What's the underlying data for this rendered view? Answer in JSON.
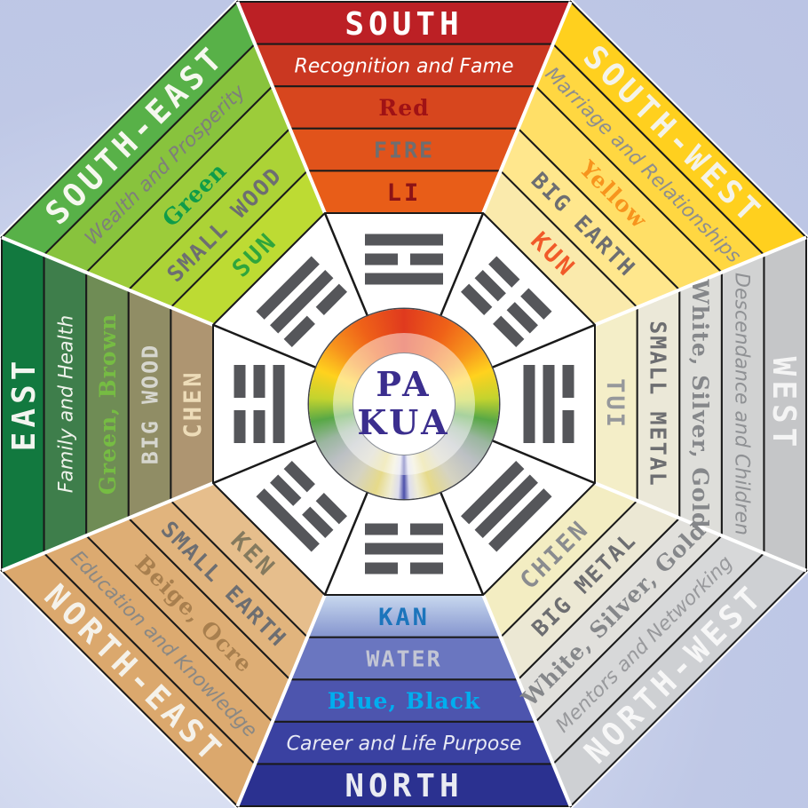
{
  "center": {
    "line1": "PA",
    "line2": "KUA",
    "text_color": "#3B2E8E"
  },
  "palette": {
    "band_stroke": "#1A1A1A",
    "separator": "#FFFFFF",
    "trigram_bar": "#55565A",
    "inner_octagon_fill": "#FFFFFF",
    "background_base": "#BFC8E6",
    "background_highlight": "#EDF0FA"
  },
  "ring": {
    "stops": [
      "#E03A1E 0%",
      "#EF6218 8%",
      "#F7941D 14%",
      "#FFD21E 19%",
      "#C3D32E 24%",
      "#58A846 28%",
      "#9BB6A0 32%",
      "#BCC0C4 36%",
      "#D5D3C2 41%",
      "#E6DA8A 45%",
      "#EFECD4 47.5%",
      "#DDDDEE 49%",
      "#4B4FA9 50%",
      "#DDDDEE 51%",
      "#EFECD4 52.5%",
      "#E6DA8A 55%",
      "#D5D3C2 59%",
      "#BCC0C4 64%",
      "#9BB6A0 68%",
      "#58A846 72%",
      "#C3D32E 76%",
      "#FFD21E 81%",
      "#F7941D 86%",
      "#EF6218 92%",
      "#E03A1E 100%"
    ]
  },
  "sectors": [
    {
      "id": "south",
      "angle_deg": 0,
      "text_rotation_deg": 0,
      "trigram_name": "li",
      "trigram_lines": [
        "solid",
        "broken",
        "solid"
      ],
      "bands": [
        {
          "text": "SOUTH",
          "color": "#FFFFFF",
          "fill": "#BC2025"
        },
        {
          "text": "Recognition and Fame",
          "color": "#FFFFFF",
          "fill": "#CA3721"
        },
        {
          "text": "Red",
          "color": "#A01215",
          "fill": "#D7461E"
        },
        {
          "text": "FIRE",
          "color": "#6D6E71",
          "fill": "#E1531B"
        },
        {
          "text": "LI",
          "color": "#8C1316",
          "fill": "#E85D18"
        }
      ]
    },
    {
      "id": "south-west",
      "angle_deg": 45,
      "text_rotation_deg": 45,
      "trigram_name": "kun",
      "trigram_lines": [
        "broken",
        "broken",
        "broken"
      ],
      "bands": [
        {
          "text": "SOUTH-WEST",
          "color": "#F4F3E9",
          "fill": "#FFD01E"
        },
        {
          "text": "Marriage and Relationships",
          "color": "#8E8E8E",
          "fill": "#FFD741"
        },
        {
          "text": "Yellow",
          "color": "#F7941D",
          "fill": "#FFDF67"
        },
        {
          "text": "BIG EARTH",
          "color": "#6D6E71",
          "fill": "#FFE78D"
        },
        {
          "text": "KUN",
          "color": "#F15A29",
          "fill": "#FAEAAC"
        }
      ]
    },
    {
      "id": "west",
      "angle_deg": 90,
      "text_rotation_deg": 90,
      "trigram_name": "tui",
      "trigram_lines": [
        "solid",
        "solid",
        "broken"
      ],
      "bands": [
        {
          "text": "WEST",
          "color": "#F4F4F4",
          "fill": "#C5C6C8"
        },
        {
          "text": "Descendance and Children",
          "color": "#8F9194",
          "fill": "#D1D2D2"
        },
        {
          "text": "White, Silver, Gold",
          "color": "#85878A",
          "fill": "#DEDEDA"
        },
        {
          "text": "SMALL METAL",
          "color": "#6D6E71",
          "fill": "#EBE8D8"
        },
        {
          "text": "TUI",
          "color": "#96989B",
          "fill": "#F4EEC8"
        }
      ]
    },
    {
      "id": "north-west",
      "angle_deg": 135,
      "text_rotation_deg": -45,
      "trigram_name": "chien",
      "trigram_lines": [
        "solid",
        "solid",
        "solid"
      ],
      "bands": [
        {
          "text": "NORTH-WEST",
          "color": "#F7F7F7",
          "fill": "#CED0D3"
        },
        {
          "text": "Mentors and Networking",
          "color": "#98999C",
          "fill": "#D7D8D9"
        },
        {
          "text": "White, Silver, Gold",
          "color": "#85878A",
          "fill": "#E1E0DC"
        },
        {
          "text": "BIG METAL",
          "color": "#6D6E71",
          "fill": "#ECE8D4"
        },
        {
          "text": "CHIEN",
          "color": "#8A8C8F",
          "fill": "#F3EDC2"
        }
      ]
    },
    {
      "id": "north",
      "angle_deg": 180,
      "text_rotation_deg": 0,
      "trigram_name": "kan",
      "trigram_lines": [
        "broken",
        "solid",
        "broken"
      ],
      "bands": [
        {
          "text": "NORTH",
          "color": "#E9EBF2",
          "fill": "#2B3190"
        },
        {
          "text": "Career and Life Purpose",
          "color": "#E8EAF5",
          "fill": "#3A41A1"
        },
        {
          "text": "Blue, Black",
          "color": "#00AEEF",
          "fill": "#4D55AE"
        },
        {
          "text": "WATER",
          "color": "#C3C6D4",
          "fill": "#6A76C0"
        },
        {
          "text": "KAN",
          "color": "#1C75BC",
          "fill": "#8494CE|#C9D9EF"
        }
      ]
    },
    {
      "id": "north-east",
      "angle_deg": 225,
      "text_rotation_deg": 45,
      "trigram_name": "ken",
      "trigram_lines": [
        "broken",
        "broken",
        "solid"
      ],
      "bands": [
        {
          "text": "NORTH-EAST",
          "color": "#F5F2EA",
          "fill": "#DBA86D"
        },
        {
          "text": "Education and Knowledge",
          "color": "#8A8884",
          "fill": "#DCAA70"
        },
        {
          "text": "Beige, Ocre",
          "color": "#A87F4E",
          "fill": "#DEAE75"
        },
        {
          "text": "SMALL EARTH",
          "color": "#6D6E71",
          "fill": "#E1B47D"
        },
        {
          "text": "KEN",
          "color": "#857A5E",
          "fill": "#E6BE8C"
        }
      ]
    },
    {
      "id": "east",
      "angle_deg": 270,
      "text_rotation_deg": -90,
      "trigram_name": "chen",
      "trigram_lines": [
        "solid",
        "broken",
        "broken"
      ],
      "bands": [
        {
          "text": "EAST",
          "color": "#F2F5EF",
          "fill": "#12793F"
        },
        {
          "text": "Family and Health",
          "color": "#EDF2EA",
          "fill": "#3E7E4B"
        },
        {
          "text": "Green, Brown",
          "color": "#76BC43",
          "fill": "#6F8C55"
        },
        {
          "text": "BIG WOOD",
          "color": "#D6D6CE",
          "fill": "#908D65"
        },
        {
          "text": "CHEN",
          "color": "#EDDCB8",
          "fill": "#AE9571"
        }
      ]
    },
    {
      "id": "south-east",
      "angle_deg": 315,
      "text_rotation_deg": -45,
      "trigram_name": "sun",
      "trigram_lines": [
        "broken",
        "solid",
        "solid"
      ],
      "bands": [
        {
          "text": "SOUTH-EAST",
          "color": "#F6F8EF",
          "fill": "#58B148"
        },
        {
          "text": "Wealth and Prosperity",
          "color": "#7E7F7B",
          "fill": "#88C33D"
        },
        {
          "text": "Green",
          "color": "#0F9C49",
          "fill": "#9CCC3A"
        },
        {
          "text": "SMALL WOOD",
          "color": "#6D6E71",
          "fill": "#ACD336"
        },
        {
          "text": "SUN",
          "color": "#2FA53C",
          "fill": "#BDDB33"
        }
      ]
    }
  ]
}
